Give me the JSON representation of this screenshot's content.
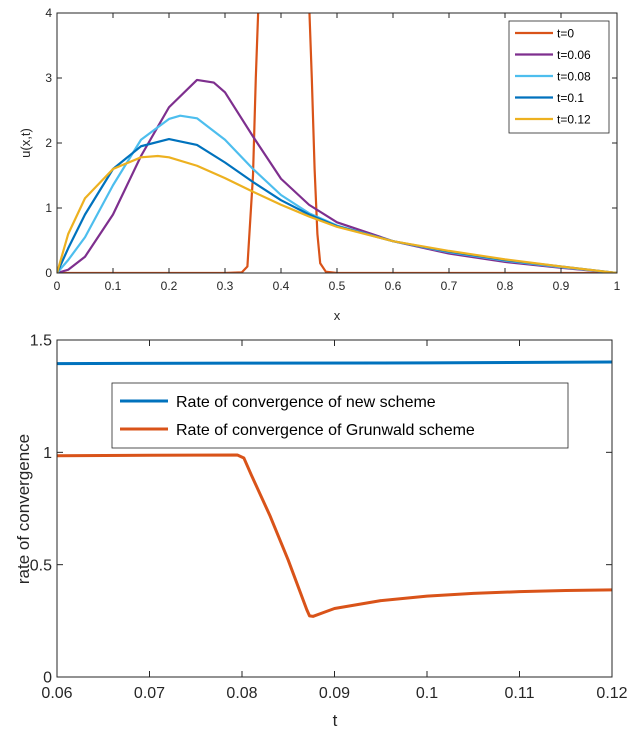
{
  "chart_data": [
    {
      "type": "line",
      "xlabel": "x",
      "ylabel": "u(x,t)",
      "xlim": [
        0,
        1
      ],
      "ylim": [
        0,
        4
      ],
      "xticks": [
        "0",
        "0.1",
        "0.2",
        "0.3",
        "0.4",
        "0.5",
        "0.6",
        "0.7",
        "0.8",
        "0.9",
        "1"
      ],
      "yticks": [
        "0",
        "1",
        "2",
        "3",
        "4"
      ],
      "legend_position": "top-right",
      "series": [
        {
          "name": "t=0",
          "color": "#D95319",
          "points": [
            [
              0,
              0
            ],
            [
              0.3,
              0
            ],
            [
              0.33,
              0.01
            ],
            [
              0.34,
              0.1
            ],
            [
              0.35,
              1.5
            ],
            [
              0.355,
              3.0
            ],
            [
              0.36,
              4.2
            ],
            [
              0.45,
              4.2
            ],
            [
              0.455,
              3.0
            ],
            [
              0.46,
              1.6
            ],
            [
              0.465,
              0.6
            ],
            [
              0.47,
              0.15
            ],
            [
              0.48,
              0.02
            ],
            [
              0.5,
              0
            ],
            [
              1,
              0
            ]
          ]
        },
        {
          "name": "t=0.06",
          "color": "#7E2F8E",
          "points": [
            [
              0,
              0
            ],
            [
              0.02,
              0.05
            ],
            [
              0.05,
              0.25
            ],
            [
              0.1,
              0.9
            ],
            [
              0.15,
              1.8
            ],
            [
              0.2,
              2.55
            ],
            [
              0.25,
              2.97
            ],
            [
              0.28,
              2.93
            ],
            [
              0.3,
              2.78
            ],
            [
              0.35,
              2.1
            ],
            [
              0.4,
              1.45
            ],
            [
              0.45,
              1.05
            ],
            [
              0.5,
              0.78
            ],
            [
              0.6,
              0.49
            ],
            [
              0.7,
              0.3
            ],
            [
              0.8,
              0.17
            ],
            [
              0.9,
              0.08
            ],
            [
              1,
              0
            ]
          ]
        },
        {
          "name": "t=0.08",
          "color": "#4DBEEE",
          "points": [
            [
              0,
              0
            ],
            [
              0.02,
              0.2
            ],
            [
              0.05,
              0.55
            ],
            [
              0.1,
              1.35
            ],
            [
              0.15,
              2.05
            ],
            [
              0.2,
              2.37
            ],
            [
              0.22,
              2.42
            ],
            [
              0.25,
              2.38
            ],
            [
              0.3,
              2.05
            ],
            [
              0.35,
              1.6
            ],
            [
              0.4,
              1.2
            ],
            [
              0.45,
              0.92
            ],
            [
              0.5,
              0.73
            ],
            [
              0.6,
              0.49
            ],
            [
              0.7,
              0.32
            ],
            [
              0.8,
              0.19
            ],
            [
              0.9,
              0.09
            ],
            [
              1,
              0
            ]
          ]
        },
        {
          "name": "t=0.1",
          "color": "#0072BD",
          "points": [
            [
              0,
              0
            ],
            [
              0.02,
              0.38
            ],
            [
              0.05,
              0.9
            ],
            [
              0.1,
              1.6
            ],
            [
              0.15,
              1.95
            ],
            [
              0.2,
              2.06
            ],
            [
              0.25,
              1.97
            ],
            [
              0.3,
              1.7
            ],
            [
              0.35,
              1.4
            ],
            [
              0.4,
              1.12
            ],
            [
              0.45,
              0.9
            ],
            [
              0.5,
              0.72
            ],
            [
              0.6,
              0.49
            ],
            [
              0.7,
              0.33
            ],
            [
              0.8,
              0.2
            ],
            [
              0.9,
              0.1
            ],
            [
              1,
              0
            ]
          ]
        },
        {
          "name": "t=0.12",
          "color": "#EDB120",
          "points": [
            [
              0,
              0
            ],
            [
              0.02,
              0.6
            ],
            [
              0.05,
              1.15
            ],
            [
              0.1,
              1.6
            ],
            [
              0.15,
              1.78
            ],
            [
              0.18,
              1.8
            ],
            [
              0.2,
              1.78
            ],
            [
              0.25,
              1.65
            ],
            [
              0.3,
              1.46
            ],
            [
              0.35,
              1.25
            ],
            [
              0.4,
              1.05
            ],
            [
              0.45,
              0.87
            ],
            [
              0.5,
              0.71
            ],
            [
              0.6,
              0.49
            ],
            [
              0.7,
              0.34
            ],
            [
              0.8,
              0.21
            ],
            [
              0.9,
              0.1
            ],
            [
              1,
              0
            ]
          ]
        }
      ]
    },
    {
      "type": "line",
      "xlabel": "t",
      "ylabel": "rate of convergence",
      "xlim": [
        0.06,
        0.12
      ],
      "ylim": [
        0,
        1.5
      ],
      "xticks": [
        "0.06",
        "0.07",
        "0.08",
        "0.09",
        "0.1",
        "0.11",
        "0.12"
      ],
      "yticks": [
        "0",
        "0.5",
        "1",
        "1.5"
      ],
      "legend_position": "top-center",
      "series": [
        {
          "name": "Rate of convergence of new scheme",
          "color": "#0072BD",
          "points": [
            [
              0.06,
              1.395
            ],
            [
              0.08,
              1.397
            ],
            [
              0.1,
              1.398
            ],
            [
              0.12,
              1.402
            ]
          ]
        },
        {
          "name": "Rate of convergence of Grunwald scheme",
          "color": "#D95319",
          "points": [
            [
              0.06,
              0.985
            ],
            [
              0.07,
              0.987
            ],
            [
              0.0795,
              0.988
            ],
            [
              0.0802,
              0.975
            ],
            [
              0.081,
              0.9
            ],
            [
              0.083,
              0.72
            ],
            [
              0.085,
              0.52
            ],
            [
              0.087,
              0.3
            ],
            [
              0.0873,
              0.272
            ],
            [
              0.0877,
              0.27
            ],
            [
              0.089,
              0.29
            ],
            [
              0.09,
              0.305
            ],
            [
              0.095,
              0.34
            ],
            [
              0.1,
              0.36
            ],
            [
              0.105,
              0.372
            ],
            [
              0.11,
              0.38
            ],
            [
              0.115,
              0.385
            ],
            [
              0.12,
              0.388
            ]
          ]
        }
      ]
    }
  ]
}
